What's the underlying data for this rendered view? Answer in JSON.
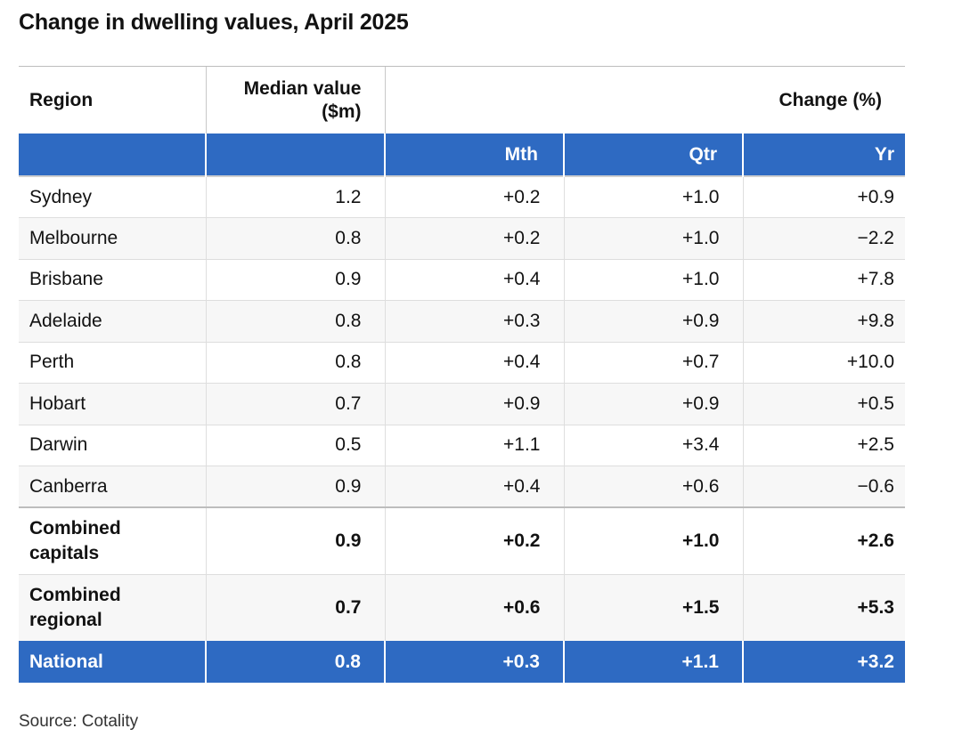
{
  "chart_data": {
    "type": "table",
    "title": "Change in dwelling values, April 2025",
    "header": {
      "region": "Region",
      "median_line1": "Median value",
      "median_line2": "($m)",
      "change": "Change (%)",
      "sub": [
        "Mth",
        "Qtr",
        "Yr"
      ]
    },
    "rows": [
      {
        "region": "Sydney",
        "median": "1.2",
        "mth": "+0.2",
        "qtr": "+1.0",
        "yr": "+0.9"
      },
      {
        "region": "Melbourne",
        "median": "0.8",
        "mth": "+0.2",
        "qtr": "+1.0",
        "yr": "−2.2"
      },
      {
        "region": "Brisbane",
        "median": "0.9",
        "mth": "+0.4",
        "qtr": "+1.0",
        "yr": "+7.8"
      },
      {
        "region": "Adelaide",
        "median": "0.8",
        "mth": "+0.3",
        "qtr": "+0.9",
        "yr": "+9.8"
      },
      {
        "region": "Perth",
        "median": "0.8",
        "mth": "+0.4",
        "qtr": "+0.7",
        "yr": "+10.0"
      },
      {
        "region": "Hobart",
        "median": "0.7",
        "mth": "+0.9",
        "qtr": "+0.9",
        "yr": "+0.5"
      },
      {
        "region": "Darwin",
        "median": "0.5",
        "mth": "+1.1",
        "qtr": "+3.4",
        "yr": "+2.5"
      },
      {
        "region": "Canberra",
        "median": "0.9",
        "mth": "+0.4",
        "qtr": "+0.6",
        "yr": "−0.6"
      }
    ],
    "summary_rows": [
      {
        "region_line1": "Combined",
        "region_line2": "capitals",
        "median": "0.9",
        "mth": "+0.2",
        "qtr": "+1.0",
        "yr": "+2.6"
      },
      {
        "region_line1": "Combined",
        "region_line2": "regional",
        "median": "0.7",
        "mth": "+0.6",
        "qtr": "+1.5",
        "yr": "+5.3"
      }
    ],
    "national": {
      "region": "National",
      "median": "0.8",
      "mth": "+0.3",
      "qtr": "+1.1",
      "yr": "+3.2"
    },
    "source": "Source: Cotality"
  },
  "colors": {
    "header_blue": "#2e6ac2",
    "zebra": "#f7f7f7",
    "text": "#121212"
  }
}
